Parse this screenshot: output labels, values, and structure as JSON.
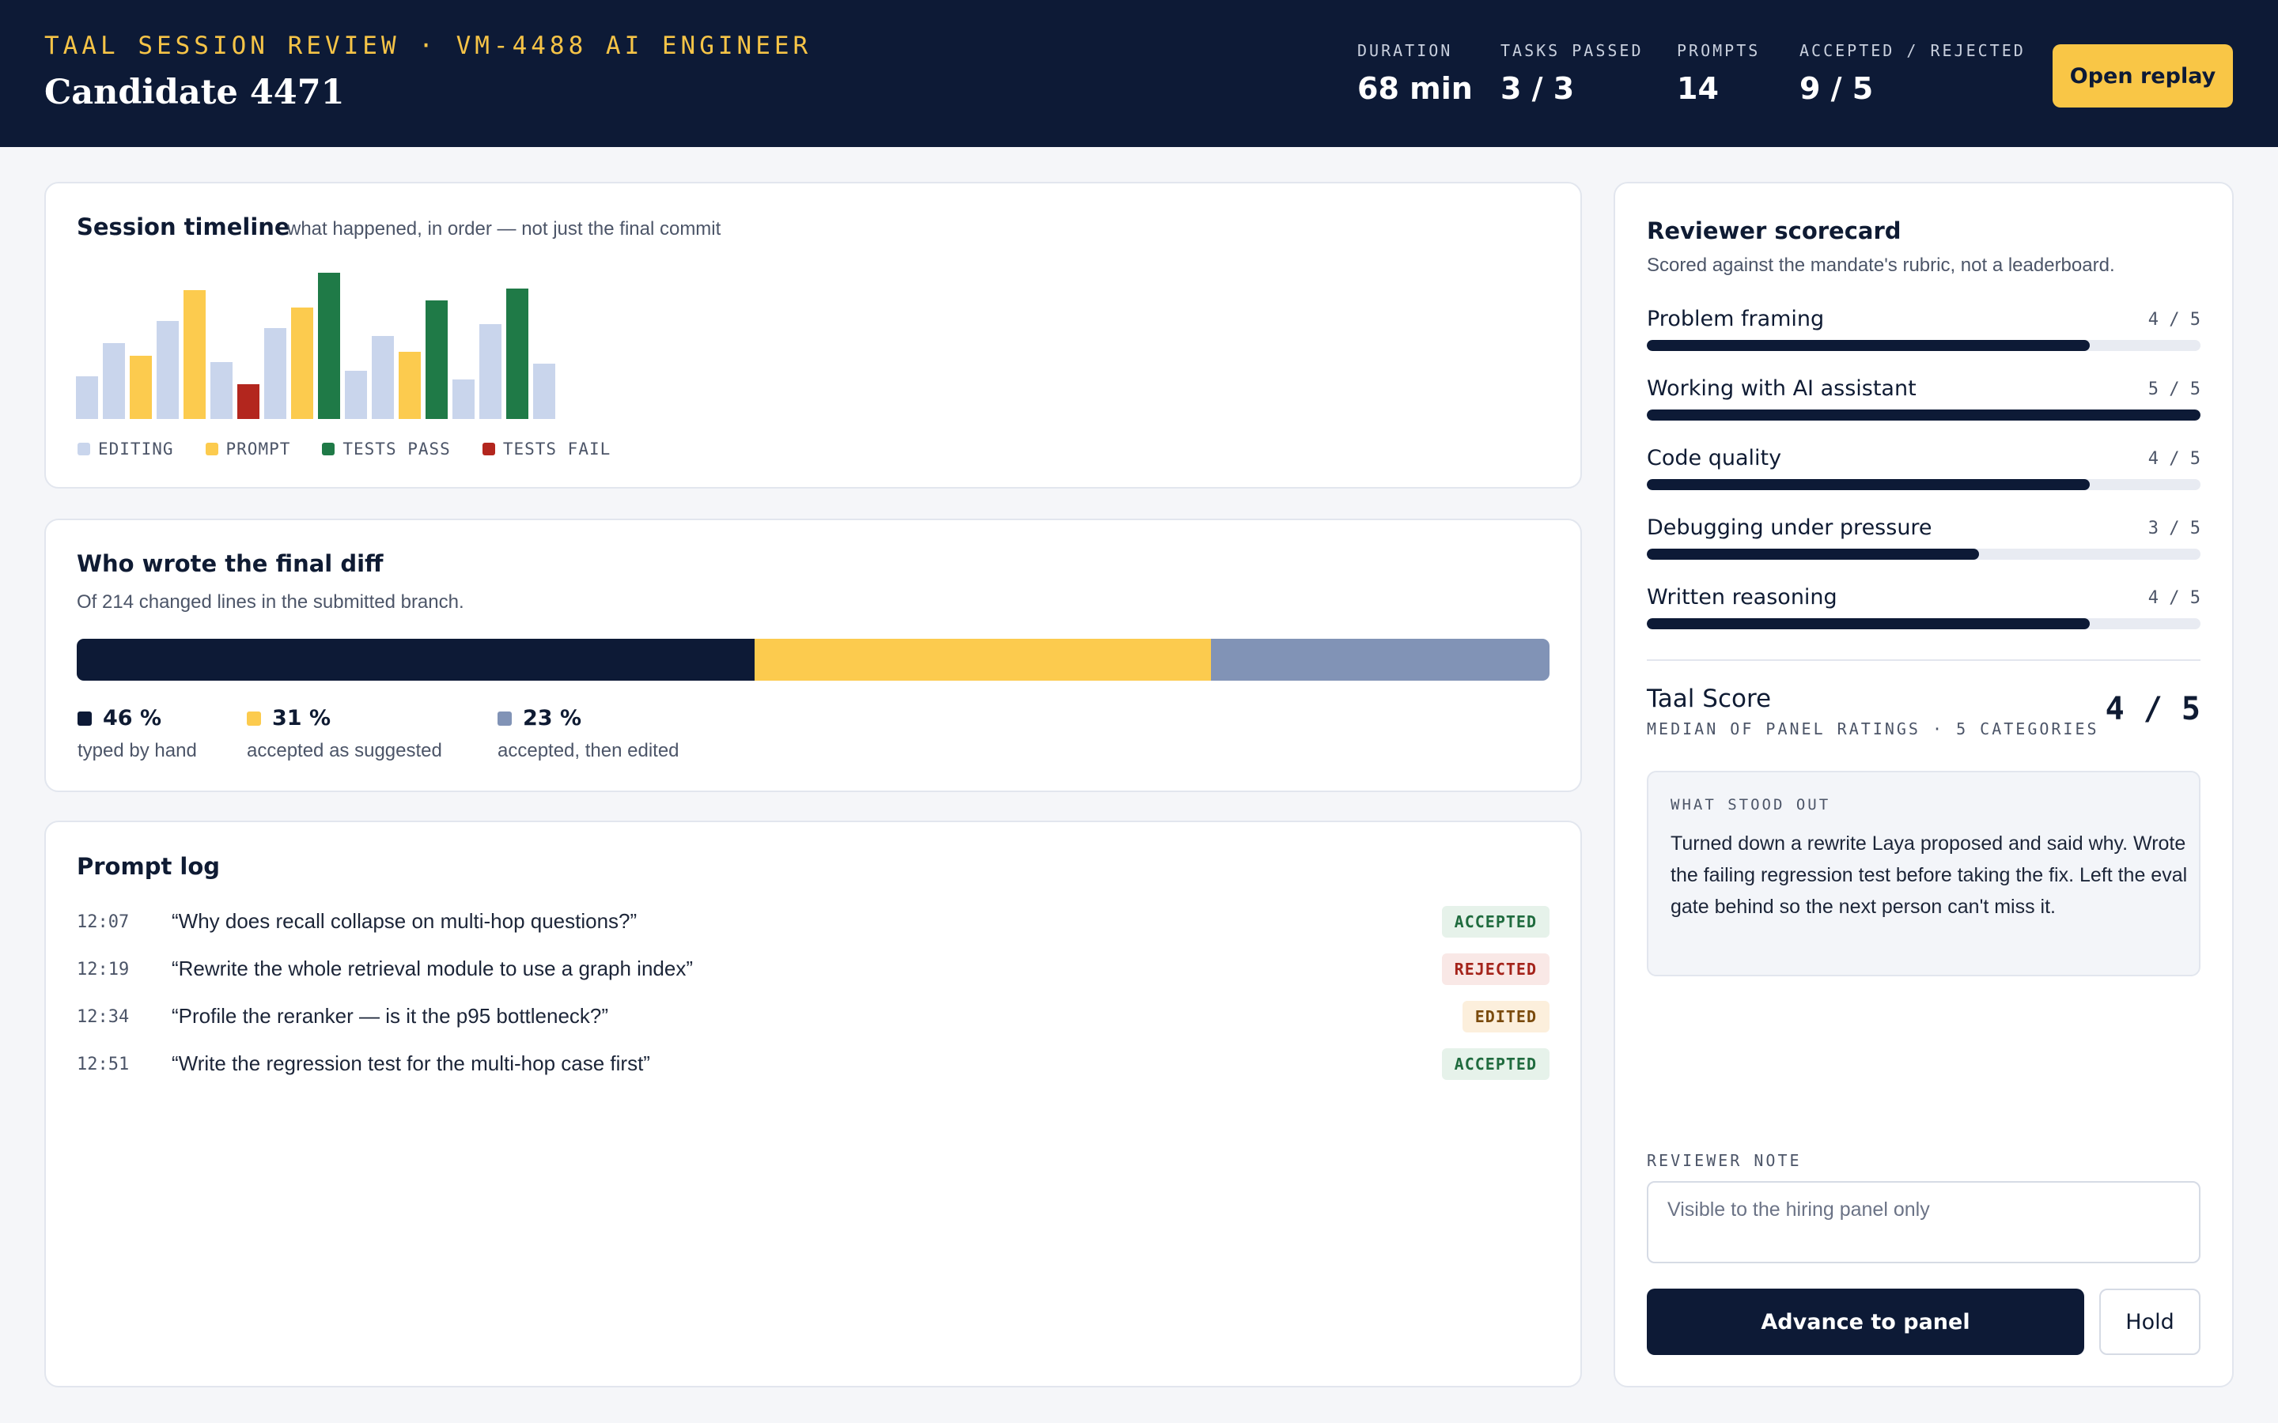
{
  "header": {
    "eyebrow": "TAAL SESSION REVIEW · VM-4488 AI ENGINEER",
    "candidate": "Candidate 4471",
    "stats": [
      {
        "label": "DURATION",
        "value": "68 min"
      },
      {
        "label": "TASKS PASSED",
        "value": "3 / 3"
      },
      {
        "label": "PROMPTS",
        "value": "14"
      },
      {
        "label": "ACCEPTED / REJECTED",
        "value": "9 / 5"
      }
    ],
    "replay_label": "Open replay"
  },
  "colors": {
    "navy": "#0d1a36",
    "yellow": "#f9c646",
    "editing": "#c9d5ec",
    "prompt": "#fccb4e",
    "tests_pass": "#1f7a47",
    "tests_fail": "#b3261e",
    "edited_seg": "#8193b6"
  },
  "timeline": {
    "title": "Session timeline",
    "subtitle": "what happened, in order — not just the final commit",
    "legend": [
      {
        "key": "editing",
        "label": "EDITING"
      },
      {
        "key": "prompt",
        "label": "PROMPT"
      },
      {
        "key": "tests_pass",
        "label": "TESTS PASS"
      },
      {
        "key": "tests_fail",
        "label": "TESTS FAIL"
      }
    ],
    "events": [
      {
        "type": "editing",
        "level": 0.29
      },
      {
        "type": "editing",
        "level": 0.52
      },
      {
        "type": "prompt",
        "level": 0.43
      },
      {
        "type": "editing",
        "level": 0.67
      },
      {
        "type": "prompt",
        "level": 0.88
      },
      {
        "type": "editing",
        "level": 0.39
      },
      {
        "type": "tests_fail",
        "level": 0.24
      },
      {
        "type": "editing",
        "level": 0.62
      },
      {
        "type": "prompt",
        "level": 0.76
      },
      {
        "type": "tests_pass",
        "level": 1.0
      },
      {
        "type": "editing",
        "level": 0.33
      },
      {
        "type": "editing",
        "level": 0.57
      },
      {
        "type": "prompt",
        "level": 0.46
      },
      {
        "type": "tests_pass",
        "level": 0.81
      },
      {
        "type": "editing",
        "level": 0.27
      },
      {
        "type": "editing",
        "level": 0.65
      },
      {
        "type": "tests_pass",
        "level": 0.89
      },
      {
        "type": "editing",
        "level": 0.38
      }
    ]
  },
  "diff": {
    "title": "Who wrote the final diff",
    "subtitle": "Of 214 changed lines in the submitted branch.",
    "segments": [
      {
        "pct": 46,
        "label": "46 %",
        "desc": "typed by hand",
        "color": "#0d1a36"
      },
      {
        "pct": 31,
        "label": "31 %",
        "desc": "accepted as suggested",
        "color": "#fccb4e"
      },
      {
        "pct": 23,
        "label": "23 %",
        "desc": "accepted, then edited",
        "color": "#8193b6"
      }
    ]
  },
  "prompt_log": {
    "title": "Prompt log",
    "rows": [
      {
        "time": "12:07",
        "text": "“Why does recall collapse on multi-hop questions?”",
        "status": "ACCEPTED",
        "kind": "accepted"
      },
      {
        "time": "12:19",
        "text": "“Rewrite the whole retrieval module to use a graph index”",
        "status": "REJECTED",
        "kind": "rejected"
      },
      {
        "time": "12:34",
        "text": "“Profile the reranker — is it the p95 bottleneck?”",
        "status": "EDITED",
        "kind": "edited"
      },
      {
        "time": "12:51",
        "text": "“Write the regression test for the multi-hop case first”",
        "status": "ACCEPTED",
        "kind": "accepted"
      }
    ]
  },
  "scorecard": {
    "title": "Reviewer scorecard",
    "subtitle": "Scored against the mandate's rubric, not a leaderboard.",
    "rows": [
      {
        "name": "Problem framing",
        "score": "4 / 5",
        "fraction": 0.8
      },
      {
        "name": "Working with AI assistant",
        "score": "5 / 5",
        "fraction": 1.0
      },
      {
        "name": "Code quality",
        "score": "4 / 5",
        "fraction": 0.8
      },
      {
        "name": "Debugging under pressure",
        "score": "3 / 5",
        "fraction": 0.6
      },
      {
        "name": "Written reasoning",
        "score": "4 / 5",
        "fraction": 0.8
      }
    ],
    "taal_title": "Taal Score",
    "taal_sub": "MEDIAN OF PANEL RATINGS · 5 CATEGORIES",
    "taal_score": "4 / 5",
    "stood_out_label": "WHAT STOOD OUT",
    "stood_out_text": "Turned down a rewrite Laya proposed and said why. Wrote the failing regression test before taking the fix. Left the eval gate behind so the next person can't miss it.",
    "note_label": "REVIEWER NOTE",
    "note_placeholder": "Visible to the hiring panel only",
    "advance_label": "Advance to panel",
    "hold_label": "Hold"
  }
}
